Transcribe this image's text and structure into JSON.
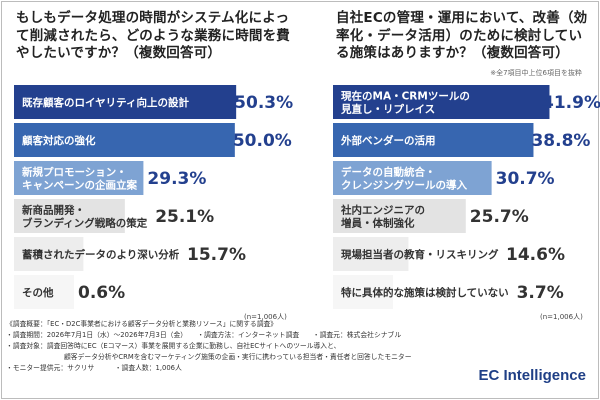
{
  "left": {
    "title": "もしもデータ処理の時間がシステム化によって削減されたら、どのような業務に時間を費やしたいですか？（複数回答可）",
    "n_label": "(n=1,006人)"
  },
  "right": {
    "title": "自社ECの管理・運用において、改善（効率化・データ活用）のために検討している施策はありますか？（複数回答可）",
    "note": "※全7項目中上位6項目を抜粋",
    "n_label": "(n=1,006人)"
  },
  "chart_data": [
    {
      "type": "bar",
      "orientation": "horizontal",
      "title": "もしもデータ処理の時間がシステム化によって削減されたら、どのような業務に時間を費やしたいですか？（複数回答可）",
      "categories": [
        "既存顧客のロイヤリティ向上の設計",
        "顧客対応の強化",
        "新規プロモーション・キャンペーンの企画立案",
        "新商品開発・ブランディング戦略の策定",
        "蓄積されたデータのより深い分析",
        "その他"
      ],
      "values": [
        50.3,
        50.0,
        29.3,
        25.1,
        15.7,
        0.6
      ],
      "value_labels": [
        "50.3%",
        "50.0%",
        "29.3%",
        "25.1%",
        "15.7%",
        "0.6%"
      ],
      "label_lines": [
        [
          "既存顧客のロイヤリティ向上の設計"
        ],
        [
          "顧客対応の強化"
        ],
        [
          "新規プロモーション・",
          "キャンペーンの企画立案"
        ],
        [
          "新商品開発・",
          "ブランディング戦略の策定"
        ],
        [
          "蓄積されたデータのより深い分析"
        ],
        [
          "その他"
        ]
      ],
      "xlim": [
        0,
        60
      ],
      "unit": "%",
      "grid": false,
      "legend": "none"
    },
    {
      "type": "bar",
      "orientation": "horizontal",
      "title": "自社ECの管理・運用において、改善（効率化・データ活用）のために検討している施策はありますか？（複数回答可）",
      "categories": [
        "現在のMA・CRMツールの見直し・リプレイス",
        "外部ベンダーの活用",
        "データの自動統合・クレンジングツールの導入",
        "社内エンジニアの増員・体制強化",
        "現場担当者の教育・リスキリング",
        "特に具体的な施策は検討していない"
      ],
      "values": [
        41.9,
        38.8,
        30.7,
        25.7,
        14.6,
        3.7
      ],
      "value_labels": [
        "41.9%",
        "38.8%",
        "30.7%",
        "25.7%",
        "14.6%",
        "3.7%"
      ],
      "label_lines": [
        [
          "現在のMA・CRMツールの",
          "見直し・リプレイス"
        ],
        [
          "外部ベンダーの活用"
        ],
        [
          "データの自動統合・",
          "クレンジングツールの導入"
        ],
        [
          "社内エンジニアの",
          "増員・体制強化"
        ],
        [
          "現場担当者の教育・リスキリング"
        ],
        [
          "特に具体的な施策は検討していない"
        ]
      ],
      "xlim": [
        0,
        60
      ],
      "unit": "%",
      "grid": false,
      "legend": "none"
    }
  ],
  "colors": {
    "rank1": "#23408e",
    "rank2": "#3766b0",
    "rank3": "#7ea3d3",
    "rank4": "#e3e3e3",
    "rank5": "#ededed",
    "rank6": "#f6f6f6",
    "pct_blue": "#23408e",
    "pct_gray": "#333333"
  },
  "footer": {
    "line1": "《調査概要：「EC・D2C事業者における顧客データ分析と業務リソース」に関する調査》",
    "line2": "・調査期間：2026年7月1日（水）〜2026年7月3日（金）　　・調査方法：インターネット調査　　・調査元：株式会社シナブル",
    "line3": "・調査対象：調査回答時にEC（Eコマース）事業を展開する企業に勤務し、自社ECサイトへのツール導入と、",
    "line4": "顧客データ分析やCRMを含むマーケティング施策の企画・実行に携わっている担当者・責任者と回答したモニター",
    "line5": "・モニター提供元：サクリサ　　　・調査人数：1,006人"
  },
  "brand": "EC Intelligence"
}
